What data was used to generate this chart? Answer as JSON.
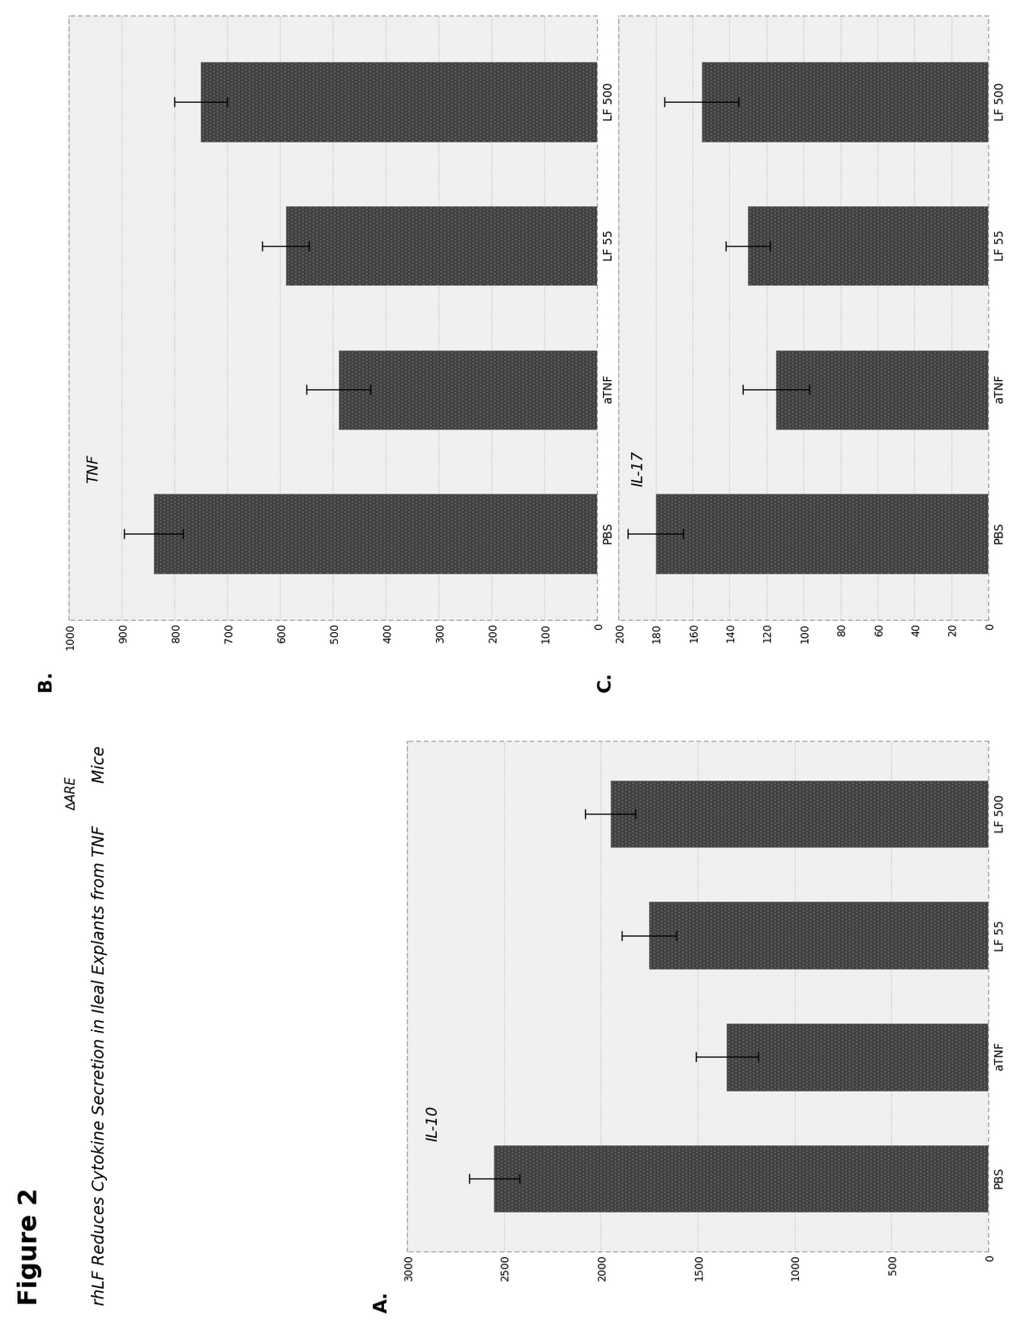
{
  "figure_title": "Figure 2",
  "figure_subtitle_part1": "rhLF Reduces Cytokine Secretion in Ileal Explants from TNF",
  "figure_subtitle_super": "∆ARE",
  "figure_subtitle_part2": " Mice",
  "panel_A_label": "A.",
  "panel_A_cytokine": "IL-10",
  "panel_A_categories": [
    "PBS",
    "aTNF",
    "LF 55",
    "LF 500"
  ],
  "panel_A_values": [
    2550,
    1350,
    1750,
    1950
  ],
  "panel_A_errors": [
    130,
    160,
    140,
    130
  ],
  "panel_A_ylim": [
    0,
    3000
  ],
  "panel_A_yticks": [
    0,
    500,
    1000,
    1500,
    2000,
    2500,
    3000
  ],
  "panel_A_ytick_labels": [
    "0",
    "500",
    "1000",
    "1500",
    "2000",
    "2500",
    "3000"
  ],
  "panel_B_label": "B.",
  "panel_B_cytokine": "TNF",
  "panel_B_categories": [
    "PBS",
    "aTNF",
    "LF 55",
    "LF 500"
  ],
  "panel_B_values": [
    840,
    490,
    590,
    750
  ],
  "panel_B_errors": [
    55,
    60,
    45,
    50
  ],
  "panel_B_ylim": [
    0,
    1000
  ],
  "panel_B_yticks": [
    0,
    100,
    200,
    300,
    400,
    500,
    600,
    700,
    800,
    900,
    1000
  ],
  "panel_B_ytick_labels": [
    "0",
    "100",
    "200",
    "300",
    "400",
    "500",
    "600",
    "700",
    "800",
    "900",
    "1000"
  ],
  "panel_C_label": "C.",
  "panel_C_cytokine": "IL-17",
  "panel_C_categories": [
    "PBS",
    "aTNF",
    "LF 55",
    "LF 500"
  ],
  "panel_C_values": [
    180,
    115,
    130,
    155
  ],
  "panel_C_errors": [
    15,
    18,
    12,
    20
  ],
  "panel_C_ylim": [
    0,
    200
  ],
  "panel_C_yticks": [
    0,
    20,
    40,
    60,
    80,
    100,
    120,
    140,
    160,
    180,
    200
  ],
  "panel_C_ytick_labels": [
    "0",
    "20",
    "40",
    "60",
    "80",
    "100",
    "120",
    "140",
    "160",
    "180",
    "200"
  ],
  "bar_color": "#404040",
  "bar_hatch": "....",
  "background_color": "#ffffff",
  "panel_bg": "#f0f0f0",
  "grid_color": "#bbbbbb",
  "font_size_title": 22,
  "font_size_subtitle": 14,
  "font_size_label": 13,
  "font_size_tick": 9,
  "font_size_cytokine": 12,
  "rotation": -90
}
